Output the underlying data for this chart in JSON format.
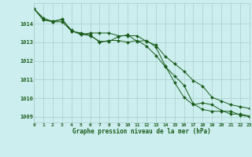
{
  "title": "Graphe pression niveau de la mer (hPa)",
  "bg_color": "#cceeee",
  "grid_color": "#aacccc",
  "line_color": "#1a5c1a",
  "series1": [
    1014.8,
    1014.2,
    1014.1,
    1014.1,
    1013.6,
    1013.5,
    1013.4,
    1013.0,
    1013.1,
    1013.1,
    1013.0,
    1013.1,
    1012.8,
    1012.3,
    1011.7,
    1011.2,
    1010.7,
    1009.7,
    1009.4,
    1009.3,
    1009.3,
    1009.3,
    1009.1,
    1009.0
  ],
  "series2": [
    1014.8,
    1014.2,
    1014.15,
    1014.2,
    1013.65,
    1013.4,
    1013.5,
    1013.5,
    1013.5,
    1013.35,
    1013.35,
    1013.35,
    1013.05,
    1012.85,
    1012.25,
    1011.85,
    1011.45,
    1010.95,
    1010.65,
    1010.05,
    1009.85,
    1009.65,
    1009.55,
    1009.45
  ],
  "series3": [
    1014.8,
    1014.3,
    1014.1,
    1014.25,
    1013.6,
    1013.45,
    1013.35,
    1013.05,
    1013.05,
    1013.3,
    1013.4,
    1013.05,
    1013.1,
    1012.75,
    1011.75,
    1010.85,
    1010.05,
    1009.65,
    1009.75,
    1009.65,
    1009.35,
    1009.15,
    1009.15,
    1009.05
  ],
  "xlim": [
    0,
    23
  ],
  "ylim": [
    1008.7,
    1015.1
  ],
  "yticks": [
    1009,
    1010,
    1011,
    1012,
    1013,
    1014
  ],
  "xticks": [
    0,
    1,
    2,
    3,
    4,
    5,
    6,
    7,
    8,
    9,
    10,
    11,
    12,
    13,
    14,
    15,
    16,
    17,
    18,
    19,
    20,
    21,
    22,
    23
  ]
}
